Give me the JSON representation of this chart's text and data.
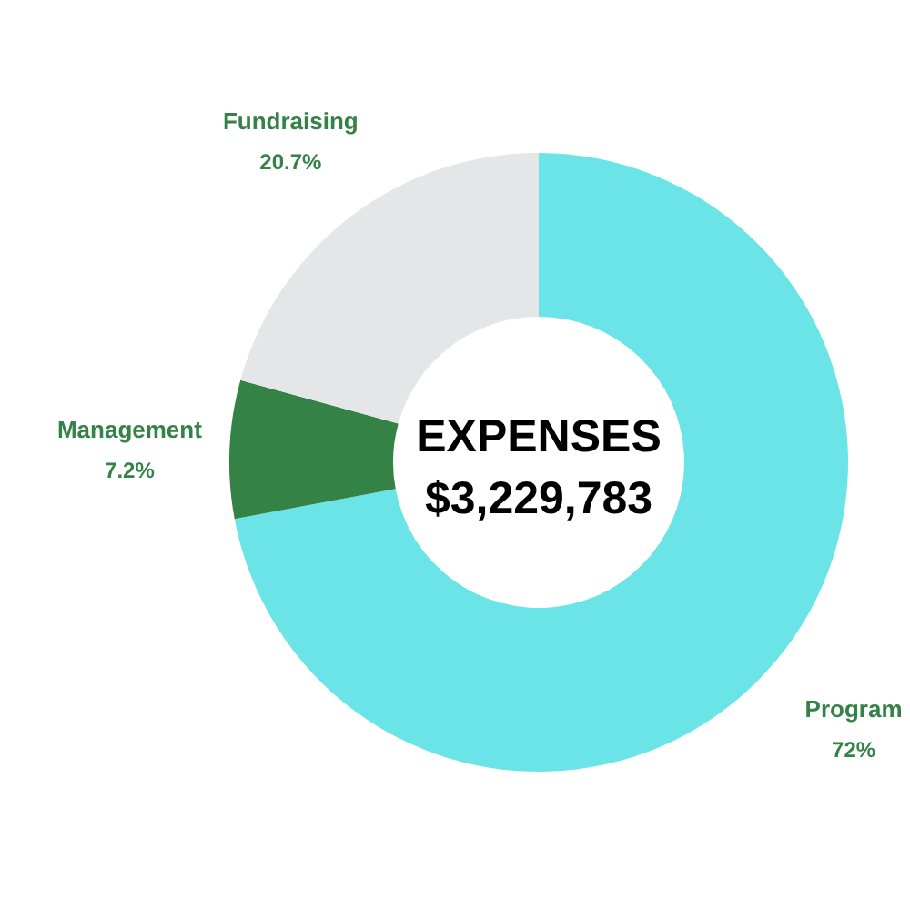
{
  "chart_data": {
    "type": "donut",
    "title": "EXPENSES",
    "subtitle": "$3,229,783",
    "categories": [
      "Program",
      "Management",
      "Fundraising"
    ],
    "values": [
      72,
      7.2,
      20.7
    ],
    "value_labels": [
      "72%",
      "7.2%",
      "20.7%"
    ],
    "colors": [
      "#6be4e8",
      "#358246",
      "#e5e6e8"
    ]
  }
}
